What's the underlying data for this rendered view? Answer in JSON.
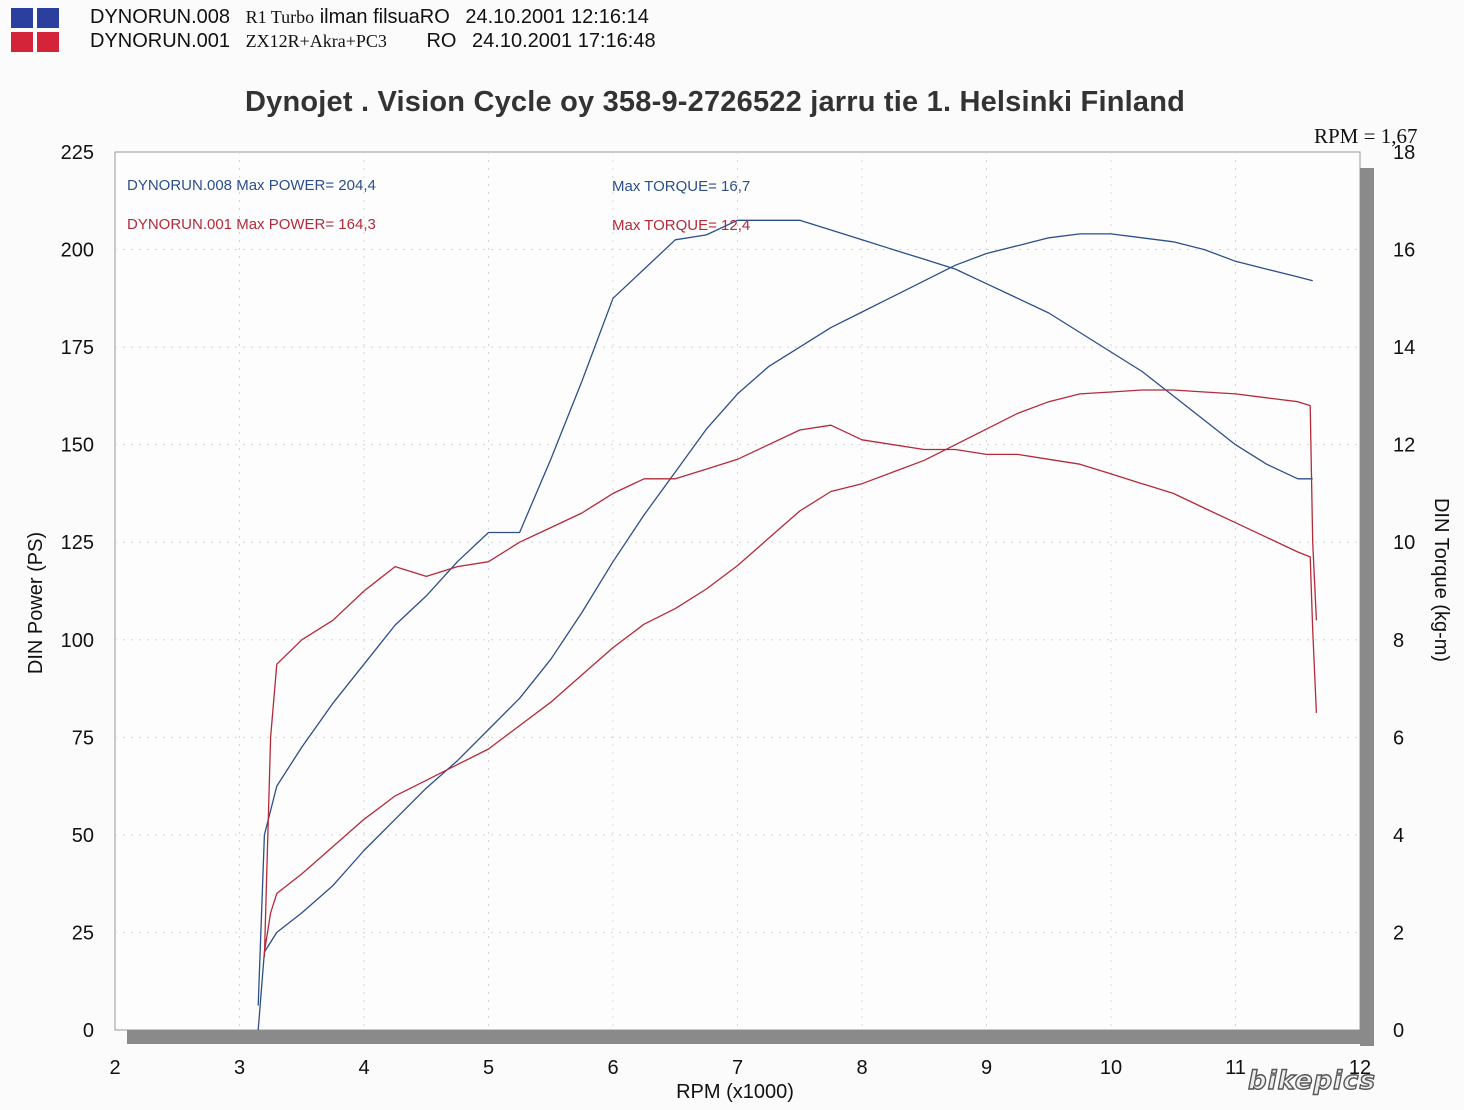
{
  "legend": {
    "runs": [
      {
        "id": "DYNORUN.008",
        "desc": "R1 Turbo",
        "extra": "ilman filsuaRO",
        "ro": "",
        "date": "24.10.2001",
        "time": "12:16:14",
        "color": "#2c4f8a"
      },
      {
        "id": "DYNORUN.001",
        "desc": "ZX12R+Akra+PC3",
        "extra": "",
        "ro": "RO",
        "date": "24.10.2001",
        "time": "17:16:48",
        "color": "#b52a3a"
      }
    ]
  },
  "header": {
    "title": "Dynojet  . Vision Cycle oy 358-9-2726522 jarru tie 1. Helsinki Finland",
    "rpm_ratio": "RPM = 1,67"
  },
  "watermark": "bikepics",
  "chart_data": {
    "type": "line",
    "xlabel": "RPM (x1000)",
    "ylabel": "DIN Power (PS)",
    "y2label": "DIN Torque (kg-m)",
    "xlim": [
      2,
      12
    ],
    "ylim": [
      0,
      225
    ],
    "y2lim": [
      0,
      18
    ],
    "xticks": [
      "2",
      "3",
      "4",
      "5",
      "6",
      "7",
      "8",
      "9",
      "10",
      "11",
      "12"
    ],
    "yticks": [
      "0",
      "25",
      "50",
      "75",
      "100",
      "125",
      "150",
      "175",
      "200",
      "225"
    ],
    "y2ticks": [
      "0",
      "2",
      "4",
      "6",
      "8",
      "10",
      "12",
      "14",
      "16",
      "18"
    ],
    "grid": true,
    "annotations": [
      {
        "text": "DYNORUN.008  Max POWER= 204,4",
        "color": "#2c4f8a"
      },
      {
        "text": "Max TORQUE= 16,7",
        "color": "#2c4f8a"
      },
      {
        "text": "DYNORUN.001  Max POWER= 164,3",
        "color": "#b52a3a"
      },
      {
        "text": "Max TORQUE= 12,4",
        "color": "#b52a3a"
      }
    ],
    "series": [
      {
        "name": "DYNORUN.008",
        "measure": "power",
        "axis": "left",
        "color": "#2c4f8a",
        "x": [
          3.15,
          3.2,
          3.3,
          3.5,
          3.75,
          4.0,
          4.25,
          4.5,
          4.75,
          5.0,
          5.25,
          5.5,
          5.75,
          6.0,
          6.25,
          6.5,
          6.75,
          7.0,
          7.25,
          7.5,
          7.75,
          8.0,
          8.25,
          8.5,
          8.75,
          9.0,
          9.25,
          9.5,
          9.75,
          10.0,
          10.25,
          10.5,
          10.75,
          11.0,
          11.25,
          11.5,
          11.62
        ],
        "y": [
          0,
          20,
          25,
          30,
          37,
          46,
          54,
          62,
          69,
          77,
          85,
          95,
          107,
          120,
          132,
          143,
          154,
          163,
          170,
          175,
          180,
          184,
          188,
          192,
          196,
          199,
          201,
          203,
          204,
          204,
          203,
          202,
          200,
          197,
          195,
          193,
          192
        ]
      },
      {
        "name": "DYNORUN.008",
        "measure": "torque",
        "axis": "right",
        "color": "#2c4f8a",
        "x": [
          3.15,
          3.2,
          3.3,
          3.5,
          3.75,
          4.0,
          4.25,
          4.5,
          4.75,
          5.0,
          5.25,
          5.5,
          5.75,
          6.0,
          6.25,
          6.5,
          6.75,
          7.0,
          7.25,
          7.5,
          7.75,
          8.0,
          8.25,
          8.5,
          8.75,
          9.0,
          9.25,
          9.5,
          9.75,
          10.0,
          10.25,
          10.5,
          10.75,
          11.0,
          11.25,
          11.5,
          11.62
        ],
        "y": [
          0.5,
          4.0,
          5.0,
          5.8,
          6.7,
          7.5,
          8.3,
          8.9,
          9.6,
          10.2,
          10.2,
          11.7,
          13.3,
          15.0,
          15.6,
          16.2,
          16.3,
          16.6,
          16.6,
          16.6,
          16.4,
          16.2,
          16.0,
          15.8,
          15.6,
          15.3,
          15.0,
          14.7,
          14.3,
          13.9,
          13.5,
          13.0,
          12.5,
          12.0,
          11.6,
          11.3,
          11.3
        ]
      },
      {
        "name": "DYNORUN.001",
        "measure": "power",
        "axis": "left",
        "color": "#b52a3a",
        "x": [
          3.2,
          3.25,
          3.3,
          3.5,
          3.75,
          4.0,
          4.25,
          4.5,
          4.75,
          5.0,
          5.25,
          5.5,
          5.75,
          6.0,
          6.25,
          6.5,
          6.75,
          7.0,
          7.25,
          7.5,
          7.75,
          8.0,
          8.25,
          8.5,
          8.75,
          9.0,
          9.25,
          9.5,
          9.75,
          10.0,
          10.25,
          10.5,
          10.75,
          11.0,
          11.25,
          11.5,
          11.6,
          11.62,
          11.65
        ],
        "y": [
          20,
          30,
          35,
          40,
          47,
          54,
          60,
          64,
          68,
          72,
          78,
          84,
          91,
          98,
          104,
          108,
          113,
          119,
          126,
          133,
          138,
          140,
          143,
          146,
          150,
          154,
          158,
          161,
          163,
          163.5,
          164,
          164,
          163.5,
          163,
          162,
          161,
          160,
          125,
          105
        ]
      },
      {
        "name": "DYNORUN.001",
        "measure": "torque",
        "axis": "right",
        "color": "#b52a3a",
        "x": [
          3.2,
          3.25,
          3.3,
          3.5,
          3.75,
          4.0,
          4.25,
          4.5,
          4.75,
          5.0,
          5.25,
          5.5,
          5.75,
          6.0,
          6.25,
          6.5,
          6.75,
          7.0,
          7.25,
          7.5,
          7.75,
          8.0,
          8.25,
          8.5,
          8.75,
          9.0,
          9.25,
          9.5,
          9.75,
          10.0,
          10.25,
          10.5,
          10.75,
          11.0,
          11.25,
          11.5,
          11.6,
          11.62,
          11.65
        ],
        "y": [
          1.5,
          6.0,
          7.5,
          8.0,
          8.4,
          9.0,
          9.5,
          9.3,
          9.5,
          9.6,
          10.0,
          10.3,
          10.6,
          11.0,
          11.3,
          11.3,
          11.5,
          11.7,
          12.0,
          12.3,
          12.4,
          12.1,
          12.0,
          11.9,
          11.9,
          11.8,
          11.8,
          11.7,
          11.6,
          11.4,
          11.2,
          11.0,
          10.7,
          10.4,
          10.1,
          9.8,
          9.7,
          8.2,
          6.5
        ]
      }
    ]
  }
}
